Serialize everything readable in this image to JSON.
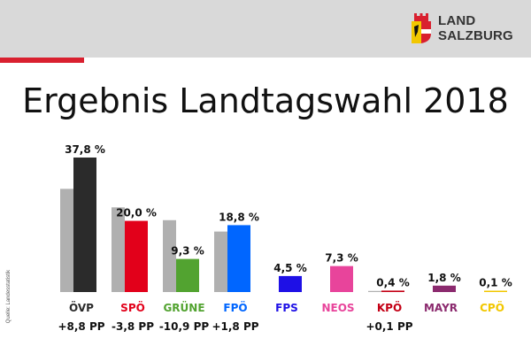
{
  "logo": {
    "line1": "LAND",
    "line2": "SALZBURG"
  },
  "title": "Ergebnis Landtagswahl 2018",
  "source": "Quelle: Landesstatistik",
  "colors": {
    "previous": "#b0b0b0",
    "header_bg": "#d9d9d9",
    "accent_red": "#d9202f"
  },
  "chart_data": {
    "type": "bar",
    "title": "Ergebnis Landtagswahl 2018",
    "unit": "%",
    "categories": [
      "ÖVP",
      "SPÖ",
      "GRÜNE",
      "FPÖ",
      "FPS",
      "NEOS",
      "KPÖ",
      "MAYR",
      "CPÖ"
    ],
    "category_colors": [
      "#2b2b2b",
      "#e2001a",
      "#52a330",
      "#0066ff",
      "#1e10e6",
      "#e8449b",
      "#c40015",
      "#8b2a6e",
      "#f2c700"
    ],
    "series": [
      {
        "values": [
          29.0,
          23.8,
          20.2,
          17.0,
          null,
          null,
          0.3,
          null,
          null
        ]
      },
      {
        "values": [
          37.8,
          20.0,
          9.3,
          18.8,
          4.5,
          7.3,
          0.4,
          1.8,
          0.1
        ]
      }
    ],
    "value_labels": [
      "37,8 %",
      "20,0 %",
      "9,3 %",
      "18,8 %",
      "4,5 %",
      "7,3 %",
      "0,4 %",
      "1,8 %",
      "0,1 %"
    ],
    "change_labels": [
      "+8,8 PP",
      "-3,8 PP",
      "-10,9 PP",
      "+1,8 PP",
      "",
      "",
      "+0,1 PP",
      "",
      ""
    ],
    "ylim": [
      0,
      40
    ]
  }
}
